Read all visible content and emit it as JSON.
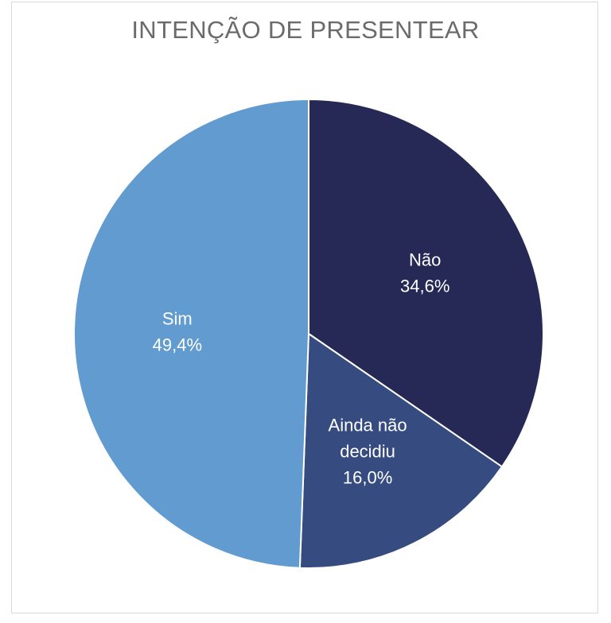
{
  "chart_data": {
    "type": "pie",
    "title": "INTENÇÃO DE PRESENTEAR",
    "slices": [
      {
        "name": "Não",
        "value": 34.6,
        "label": "34,6%",
        "color": "#262855",
        "label_lines": [
          "Não",
          "34,6%"
        ]
      },
      {
        "name": "Ainda não decidiu",
        "value": 16.0,
        "label": "16,0%",
        "color": "#364B7F",
        "label_lines": [
          "Ainda não",
          "decidiu",
          "16,0%"
        ]
      },
      {
        "name": "Sim",
        "value": 49.4,
        "label": "49,4%",
        "color": "#619BCF",
        "label_lines": [
          "Sim",
          "49,4%"
        ]
      }
    ],
    "start_angle": "12 o'clock",
    "direction": "clockwise",
    "legend": "none",
    "label_position": "inside"
  }
}
